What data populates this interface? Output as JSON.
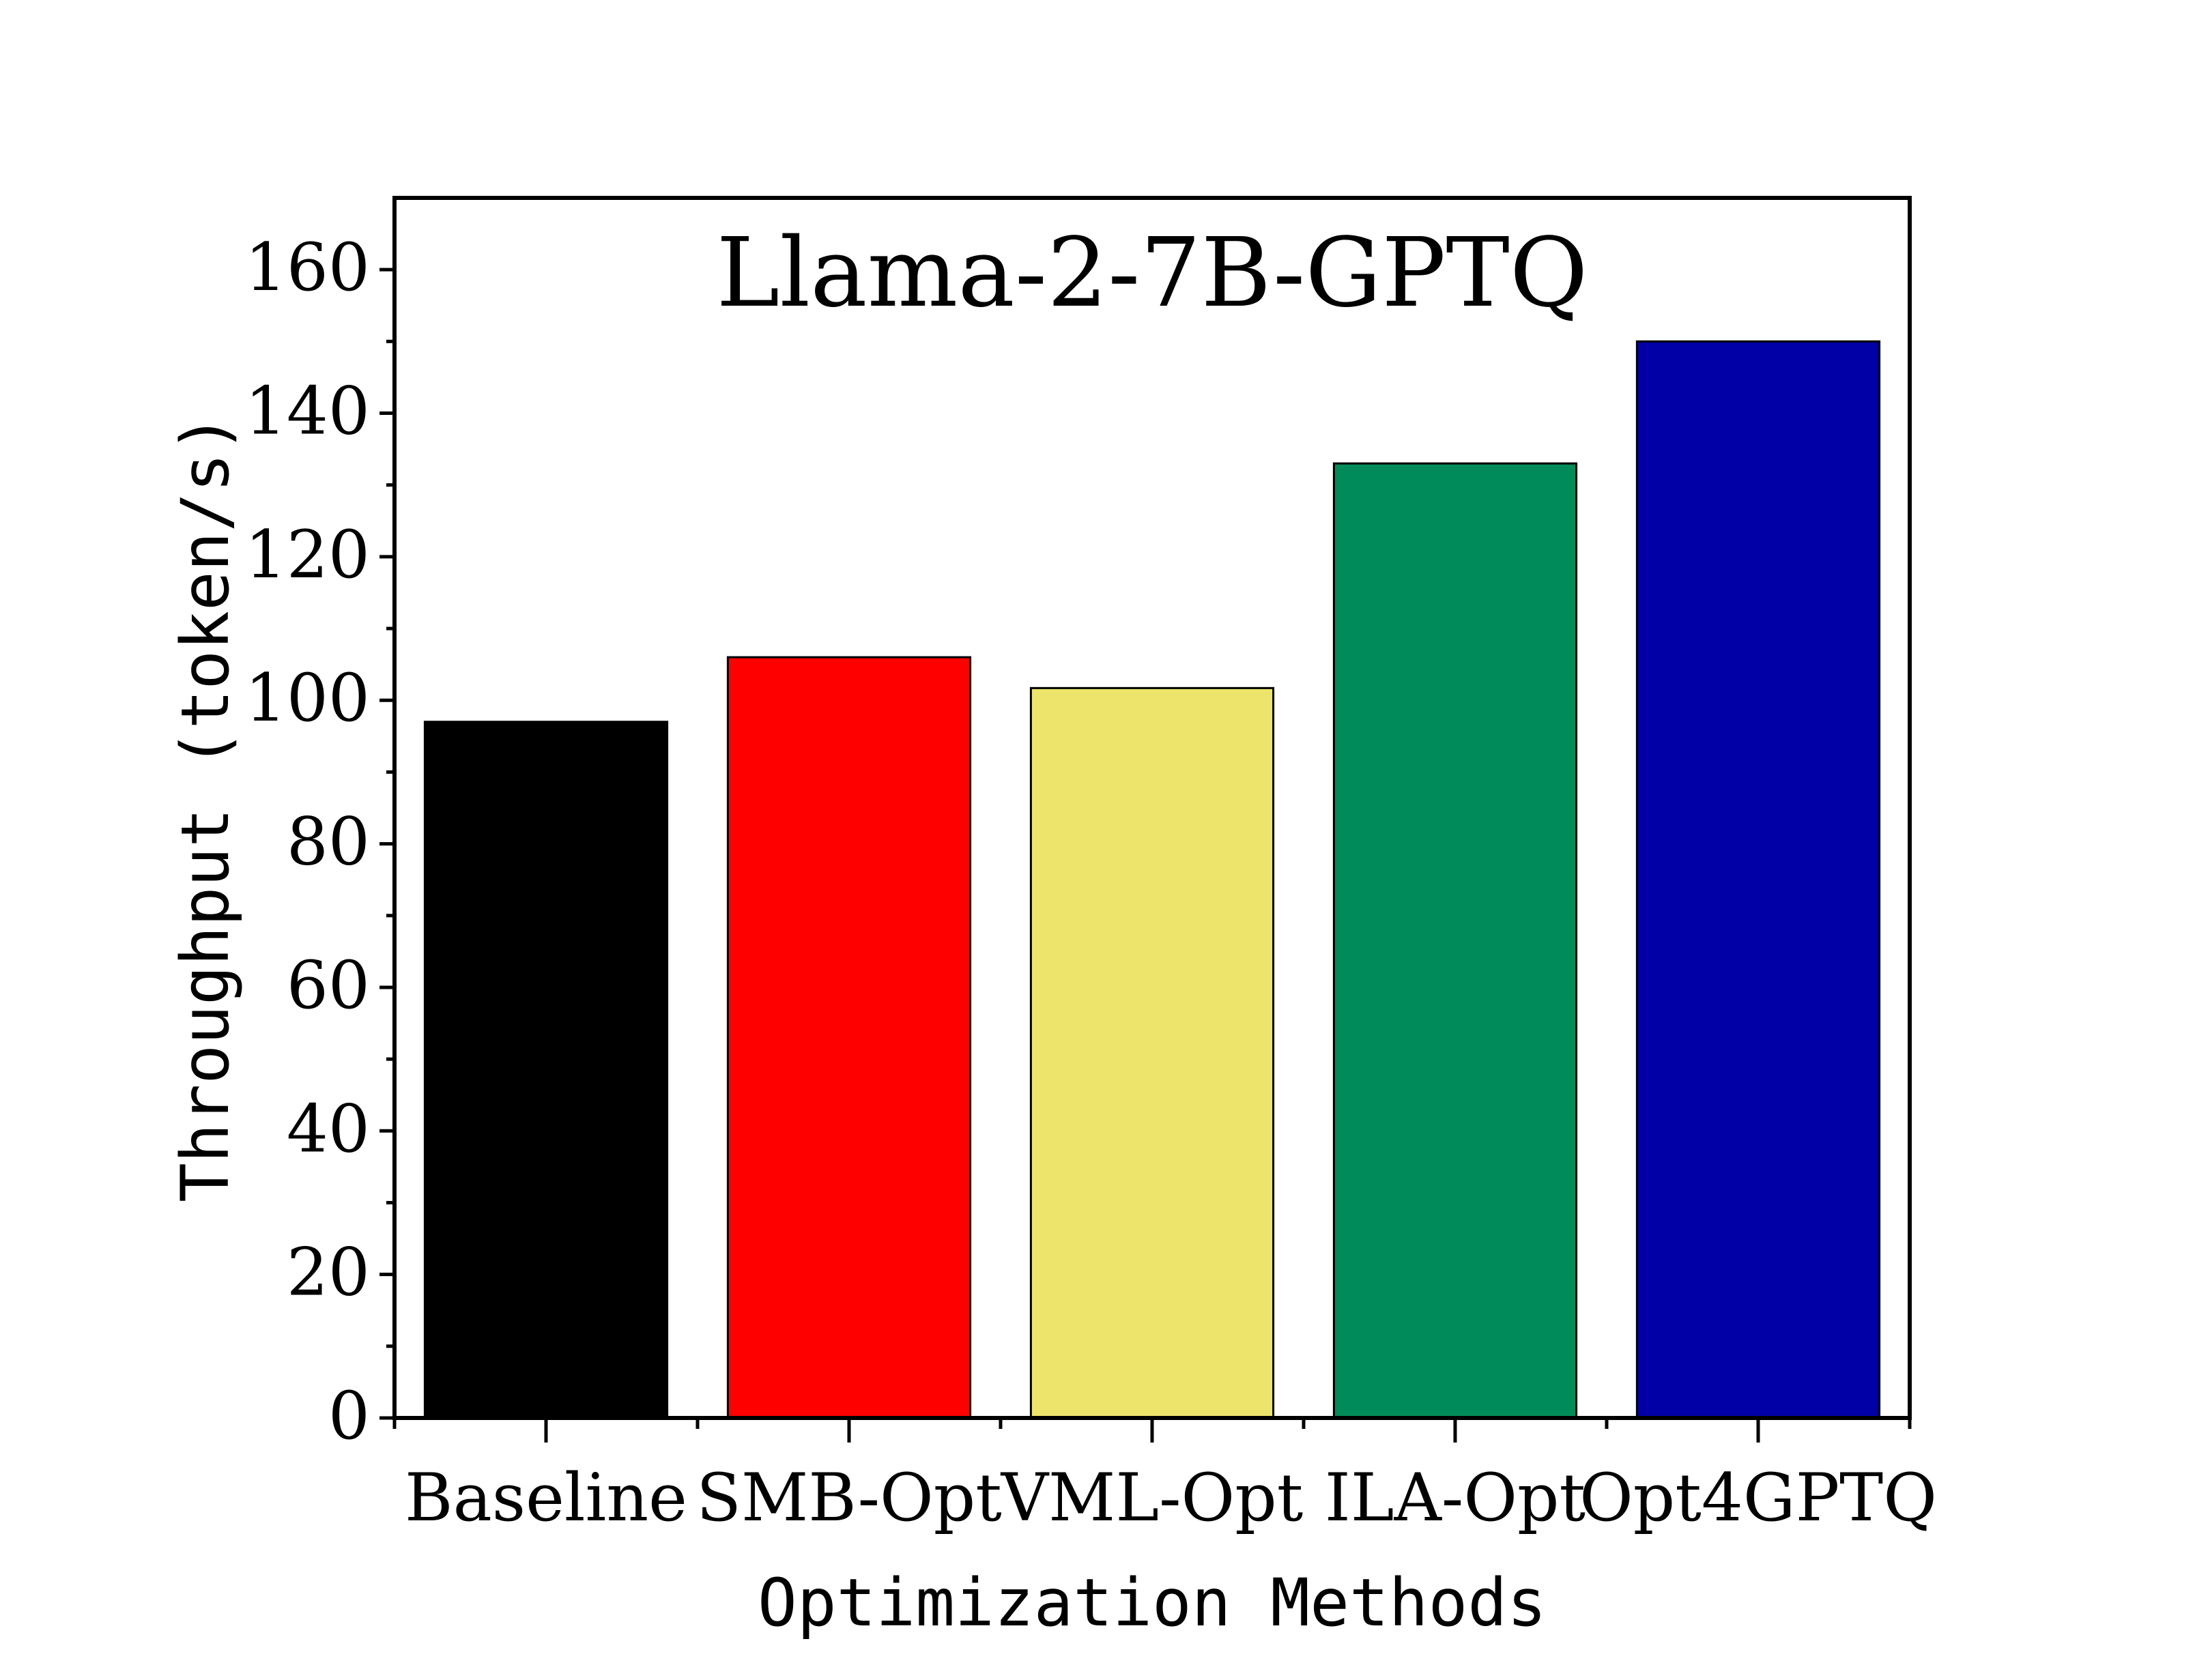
{
  "chart_data": {
    "type": "bar",
    "title": "Llama-2-7B-GPTQ",
    "xlabel": "Optimization Methods",
    "ylabel": "Throughput (token/s)",
    "categories": [
      "Baseline",
      "SMB-Opt",
      "VML-Opt",
      "ILA-Opt",
      "Opt4GPTQ"
    ],
    "values": [
      97,
      106,
      101.7,
      133,
      150
    ],
    "colors": [
      "#000000",
      "#ff0000",
      "#ede56b",
      "#008c5a",
      "#0000a6"
    ],
    "ylim": [
      0,
      170
    ],
    "yticks": [
      0,
      20,
      40,
      60,
      80,
      100,
      120,
      140,
      160
    ],
    "grid": false,
    "legend": "none"
  }
}
